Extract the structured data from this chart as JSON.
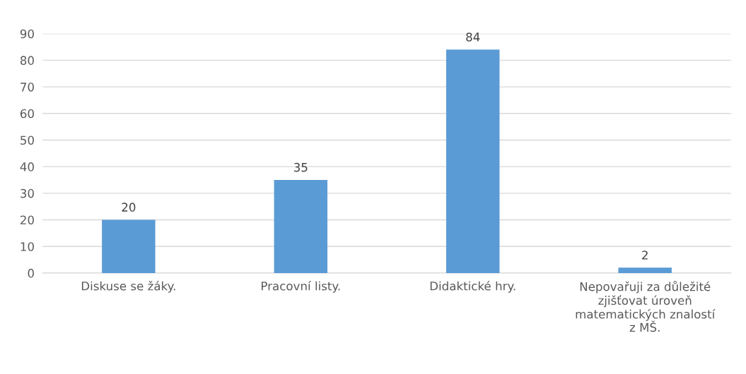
{
  "chart_data": {
    "type": "bar",
    "categories": [
      "Diskuse se žáky.",
      "Pracovní listy.",
      "Didaktické hry.",
      "Nepovařuji za důležité\nzjišťovat úroveň\nmatematických znalostí\nz MŠ."
    ],
    "values": [
      20,
      35,
      84,
      2
    ],
    "color": "#5b9bd5",
    "ylim": [
      0,
      90
    ],
    "yticks": [
      0,
      10,
      20,
      30,
      40,
      50,
      60,
      70,
      80,
      90
    ],
    "grid": "y",
    "data_labels": true,
    "legend": false
  }
}
